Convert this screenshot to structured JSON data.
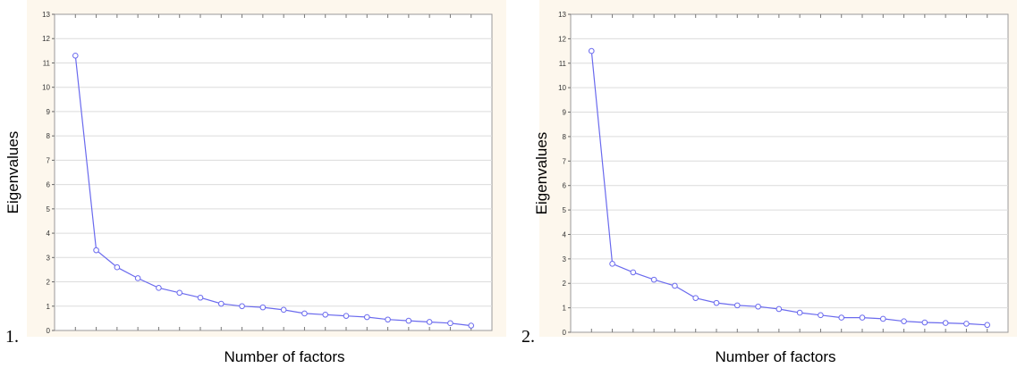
{
  "colors": {
    "background": "#fdf7ed",
    "plot_border": "#9a9a9a",
    "grid": "#dcdcdc",
    "series": "#6a6aee"
  },
  "chart_data": [
    {
      "type": "line",
      "panel_label": "1.",
      "xlabel": "Number of factors",
      "ylabel": "Eigenvalues",
      "ylim": [
        0,
        13
      ],
      "yticks": [
        "0",
        "1",
        "2",
        "3",
        "4",
        "5",
        "6",
        "7",
        "8",
        "9",
        "10",
        "11",
        "12",
        "13"
      ],
      "grid": true,
      "x": [
        1,
        2,
        3,
        4,
        5,
        6,
        7,
        8,
        9,
        10,
        11,
        12,
        13,
        14,
        15,
        16,
        17,
        18,
        19,
        20
      ],
      "values": [
        11.3,
        3.3,
        2.6,
        2.15,
        1.75,
        1.55,
        1.35,
        1.1,
        1.0,
        0.95,
        0.85,
        0.7,
        0.65,
        0.6,
        0.55,
        0.45,
        0.4,
        0.35,
        0.3,
        0.2
      ]
    },
    {
      "type": "line",
      "panel_label": "2.",
      "xlabel": "Number of factors",
      "ylabel": "Eigenvalues",
      "ylim": [
        0,
        13
      ],
      "yticks": [
        "0",
        "1",
        "2",
        "3",
        "4",
        "5",
        "6",
        "7",
        "8",
        "9",
        "10",
        "11",
        "12",
        "13"
      ],
      "grid": true,
      "x": [
        1,
        2,
        3,
        4,
        5,
        6,
        7,
        8,
        9,
        10,
        11,
        12,
        13,
        14,
        15,
        16,
        17,
        18,
        19,
        20
      ],
      "values": [
        11.5,
        2.8,
        2.45,
        2.15,
        1.9,
        1.4,
        1.2,
        1.1,
        1.05,
        0.95,
        0.8,
        0.7,
        0.6,
        0.6,
        0.55,
        0.45,
        0.4,
        0.38,
        0.35,
        0.3
      ]
    }
  ]
}
